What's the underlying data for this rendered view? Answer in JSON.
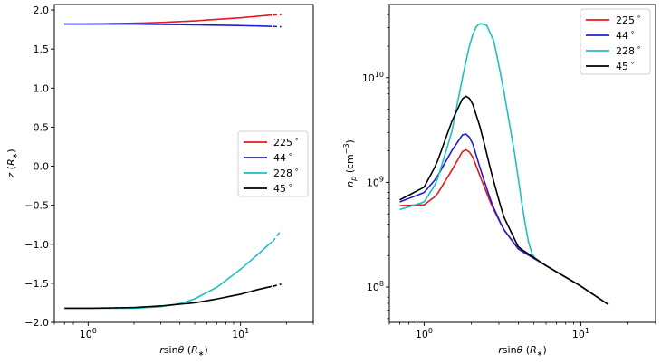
{
  "chart_data": [
    {
      "type": "line",
      "xlabel": "rsinθ (R∗)",
      "ylabel": "z (R∗)",
      "xscale": "log",
      "xlim": [
        0.6,
        30
      ],
      "ylim": [
        -2.0,
        2.07
      ],
      "x_ticks": [
        {
          "v": 1,
          "base": "10",
          "exp": "0"
        },
        {
          "v": 10,
          "base": "10",
          "exp": "1"
        }
      ],
      "y_ticks": [
        {
          "v": 2.0,
          "label": "2.0"
        },
        {
          "v": 1.5,
          "label": "1.5"
        },
        {
          "v": 1.0,
          "label": "1.0"
        },
        {
          "v": 0.5,
          "label": "0.5"
        },
        {
          "v": 0.0,
          "label": "0.0"
        },
        {
          "v": -0.5,
          "label": "−0.5"
        },
        {
          "v": -1.0,
          "label": "−1.0"
        },
        {
          "v": -1.5,
          "label": "−1.5"
        },
        {
          "v": -2.0,
          "label": "−2.0"
        }
      ],
      "legend_position": "center-right",
      "series": [
        {
          "name": "225∘",
          "color": "#e41a1c",
          "x": [
            0.7,
            1,
            2,
            3,
            5,
            7,
            10,
            13,
            16
          ],
          "y": [
            1.82,
            1.82,
            1.83,
            1.84,
            1.86,
            1.88,
            1.9,
            1.92,
            1.935
          ],
          "dash_x": [
            16.2,
            18.5
          ],
          "dash_y": [
            1.935,
            1.94
          ]
        },
        {
          "name": "44∘",
          "color": "#1f1fd6",
          "x": [
            0.7,
            1,
            2,
            3,
            5,
            7,
            10,
            13,
            16
          ],
          "y": [
            1.82,
            1.82,
            1.82,
            1.815,
            1.81,
            1.805,
            1.8,
            1.795,
            1.79
          ],
          "dash_x": [
            16.2,
            18.5
          ],
          "dash_y": [
            1.79,
            1.785
          ]
        },
        {
          "name": "228∘",
          "color": "#1fbfbf",
          "x": [
            0.7,
            1,
            2,
            3,
            4,
            5,
            7,
            10,
            13,
            16
          ],
          "y": [
            -1.82,
            -1.82,
            -1.82,
            -1.8,
            -1.76,
            -1.7,
            -1.55,
            -1.32,
            -1.13,
            -0.97
          ],
          "dash_x": [
            16.2,
            18.5
          ],
          "dash_y": [
            -0.97,
            -0.82
          ]
        },
        {
          "name": "45∘",
          "color": "#000000",
          "x": [
            0.7,
            1,
            2,
            3,
            5,
            7,
            10,
            13,
            16
          ],
          "y": [
            -1.82,
            -1.82,
            -1.81,
            -1.79,
            -1.75,
            -1.7,
            -1.64,
            -1.58,
            -1.54
          ],
          "dash_x": [
            16.2,
            18.5
          ],
          "dash_y": [
            -1.54,
            -1.51
          ]
        }
      ]
    },
    {
      "type": "line",
      "xlabel": "rsinθ (R∗)",
      "ylabel": "np (cm−3)",
      "xscale": "log",
      "yscale": "log",
      "xlim": [
        0.6,
        30
      ],
      "ylim": [
        46000000.0,
        50000000000.0
      ],
      "x_ticks": [
        {
          "v": 1,
          "base": "10",
          "exp": "0"
        },
        {
          "v": 10,
          "base": "10",
          "exp": "1"
        }
      ],
      "y_ticks": [
        {
          "v": 100000000.0,
          "base": "10",
          "exp": "8"
        },
        {
          "v": 1000000000.0,
          "base": "10",
          "exp": "9"
        },
        {
          "v": 10000000000.0,
          "base": "10",
          "exp": "10"
        }
      ],
      "legend_position": "top-right",
      "series": [
        {
          "name": "225∘",
          "color": "#e41a1c",
          "x": [
            0.7,
            1.0,
            1.2,
            1.5,
            1.8,
            2.0,
            2.3,
            2.7,
            3.2,
            4.0,
            6.0,
            10.0,
            15.0
          ],
          "y": [
            600000000.0,
            610000000.0,
            750000000.0,
            1300000000.0,
            2100000000.0,
            1900000000.0,
            1100000000.0,
            600000000.0,
            360000000.0,
            230000000.0,
            160000000.0,
            102000000.0,
            68000000.0
          ]
        },
        {
          "name": "44∘",
          "color": "#1f1fd6",
          "x": [
            0.7,
            1.0,
            1.2,
            1.5,
            1.8,
            2.0,
            2.3,
            2.7,
            3.2,
            4.0,
            6.0,
            10.0,
            15.0
          ],
          "y": [
            650000000.0,
            800000000.0,
            1100000000.0,
            2000000000.0,
            3000000000.0,
            2600000000.0,
            1300000000.0,
            630000000.0,
            360000000.0,
            230000000.0,
            160000000.0,
            102000000.0,
            68000000.0
          ]
        },
        {
          "name": "228∘",
          "color": "#1fbfbf",
          "x": [
            0.7,
            1.0,
            1.2,
            1.5,
            1.8,
            2.0,
            2.2,
            2.5,
            2.8,
            3.2,
            3.8,
            4.3,
            4.7,
            5.0,
            6.0,
            10.0,
            15.0
          ],
          "y": [
            550000000.0,
            650000000.0,
            1000000000.0,
            3000000000.0,
            12000000000.0,
            24000000000.0,
            33000000000.0,
            32000000000.0,
            22000000000.0,
            8000000000.0,
            1800000000.0,
            500000000.0,
            240000000.0,
            190000000.0,
            160000000.0,
            102000000.0,
            68000000.0
          ]
        },
        {
          "name": "45∘",
          "color": "#000000",
          "x": [
            0.7,
            1.0,
            1.2,
            1.5,
            1.8,
            2.0,
            2.3,
            2.7,
            3.2,
            4.0,
            6.0,
            10.0,
            15.0
          ],
          "y": [
            680000000.0,
            900000000.0,
            1500000000.0,
            3800000000.0,
            6800000000.0,
            6200000000.0,
            3200000000.0,
            1200000000.0,
            480000000.0,
            240000000.0,
            160000000.0,
            102000000.0,
            68000000.0
          ]
        }
      ]
    }
  ]
}
